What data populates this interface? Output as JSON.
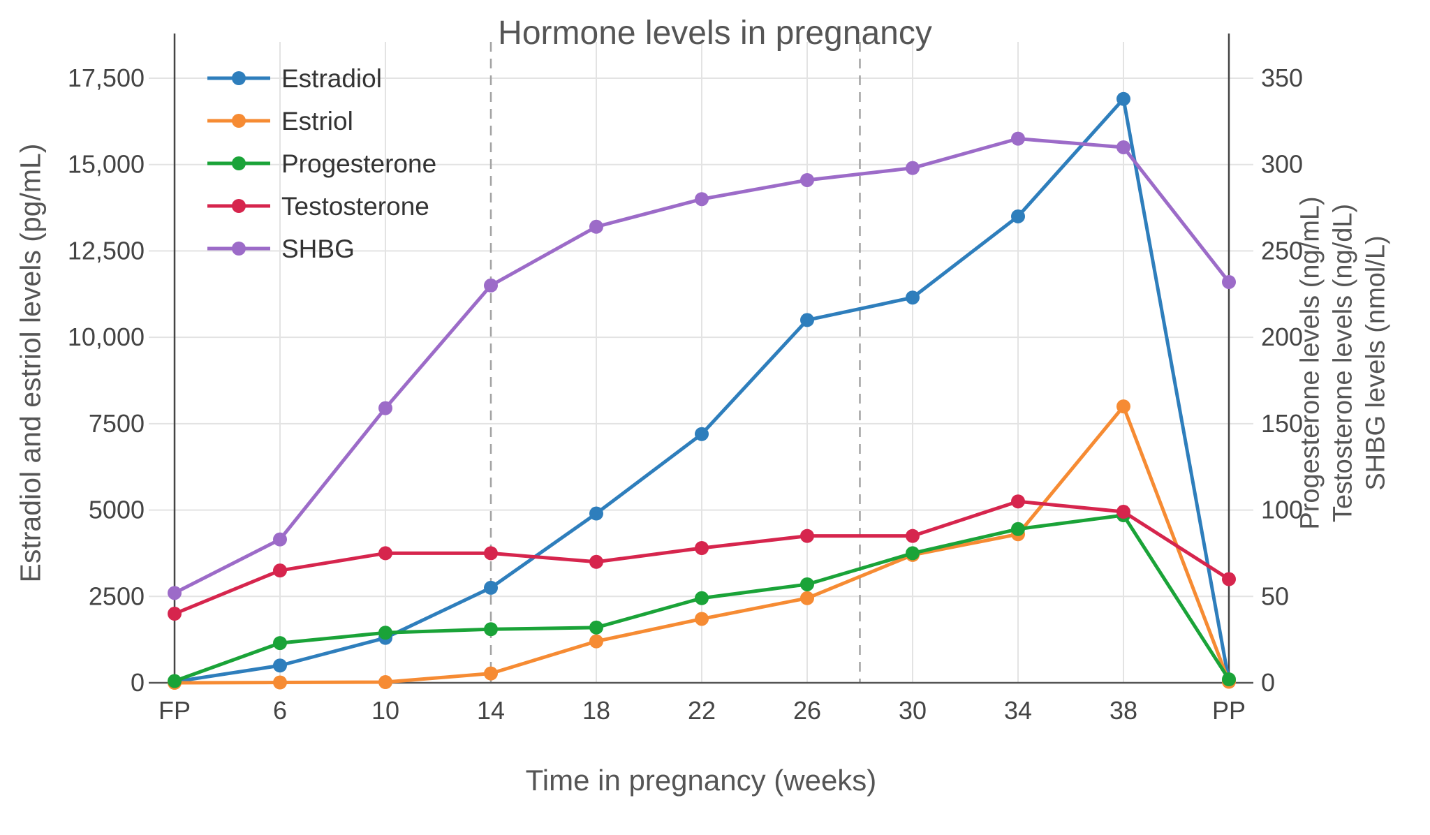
{
  "chart_data": {
    "type": "line",
    "title": "Hormone levels in pregnancy",
    "xlabel": "Time in pregnancy (weeks)",
    "categories": [
      "FP",
      "6",
      "10",
      "14",
      "18",
      "22",
      "26",
      "30",
      "34",
      "38",
      "PP"
    ],
    "left_axis": {
      "label": "Estradiol and estriol levels (pg/mL)",
      "range": [
        0,
        18550
      ],
      "ticks": [
        0,
        2500,
        5000,
        7500,
        10000,
        12500,
        15000,
        17500
      ],
      "tick_labels": [
        "0",
        "2500",
        "5000",
        "7500",
        "10,000",
        "12,500",
        "15,000",
        "17,500"
      ]
    },
    "right_axis": {
      "labels": [
        "Progesterone levels (ng/mL)",
        "Testosterone levels (ng/dL)",
        "SHBG levels (nmol/L)"
      ],
      "range": [
        0,
        371
      ],
      "ticks": [
        0,
        50,
        100,
        150,
        200,
        250,
        300,
        350
      ],
      "tick_labels": [
        "0",
        "50",
        "100",
        "150",
        "200",
        "250",
        "300",
        "350"
      ]
    },
    "series": [
      {
        "name": "Estradiol",
        "axis": "left",
        "unit": "pg/mL",
        "color": "#2e7ebc",
        "values": [
          30,
          500,
          1300,
          2750,
          4900,
          7200,
          10500,
          11150,
          13500,
          16900,
          50
        ]
      },
      {
        "name": "Estriol",
        "axis": "left",
        "unit": "pg/mL",
        "color": "#f68b33",
        "values": [
          0,
          10,
          20,
          270,
          1200,
          1850,
          2450,
          3700,
          4300,
          8000,
          30
        ]
      },
      {
        "name": "Progesterone",
        "axis": "right",
        "unit": "ng/mL",
        "color": "#1aa338",
        "values": [
          1,
          23,
          29,
          31,
          32,
          49,
          57,
          75,
          89,
          97,
          2
        ]
      },
      {
        "name": "Testosterone",
        "axis": "right",
        "unit": "ng/dL",
        "color": "#d6254d",
        "values": [
          40,
          65,
          75,
          75,
          70,
          78,
          85,
          85,
          105,
          99,
          60
        ]
      },
      {
        "name": "SHBG",
        "axis": "right",
        "unit": "nmol/L",
        "color": "#9c6bc8",
        "values": [
          52,
          83,
          159,
          230,
          264,
          280,
          291,
          298,
          315,
          310,
          232
        ]
      }
    ],
    "dividers": {
      "dashed_at_index": [
        3,
        6.5
      ],
      "solid_at_index": [
        0,
        10
      ]
    },
    "legend": {
      "position": "top-left",
      "entries": [
        "Estradiol",
        "Estriol",
        "Progesterone",
        "Testosterone",
        "SHBG"
      ]
    },
    "grid": true
  }
}
